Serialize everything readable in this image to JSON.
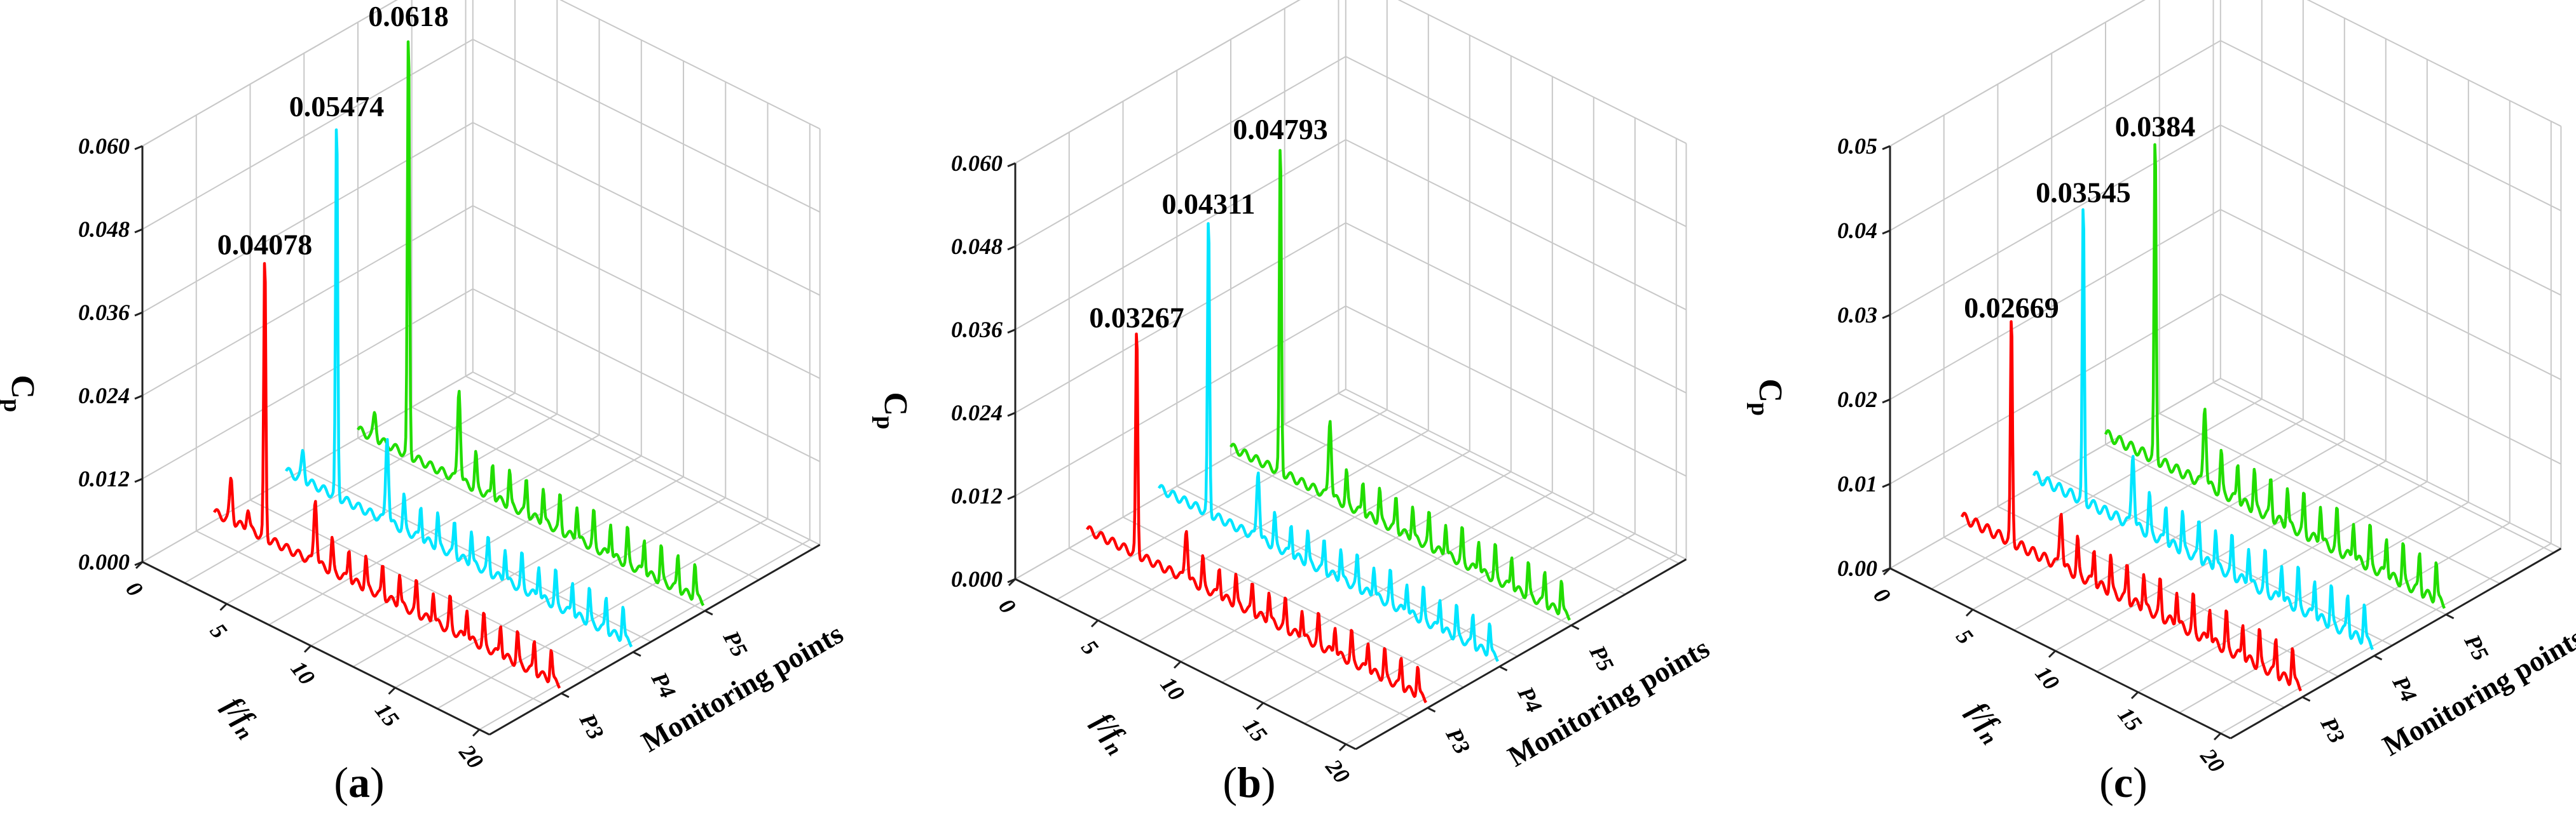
{
  "chart_data": [
    {
      "type": "line",
      "panel_label": "a",
      "zlim": [
        0,
        0.06
      ],
      "zticks": [
        "0.000",
        "0.012",
        "0.024",
        "0.036",
        "0.048",
        "0.060"
      ],
      "xticks": [
        "0",
        "5",
        "10",
        "15",
        "20"
      ],
      "xlim": [
        0,
        20
      ],
      "xlabel": "f/f",
      "xlabel_sub": "n",
      "ylabel": "Monitoring points",
      "zlabel": "C",
      "zlabel_sub": "p",
      "series": [
        {
          "name": "P3",
          "color": "#ff0000",
          "peak_freq": 3.0,
          "peak_value": 0.04078,
          "peak_label": "0.04078",
          "secondary": [
            {
              "f": 1.0,
              "v": 0.006
            },
            {
              "f": 2.0,
              "v": 0.003
            },
            {
              "f": 6.0,
              "v": 0.0095
            }
          ],
          "harmonic_amp": 0.0045
        },
        {
          "name": "P4",
          "color": "#00e5ff",
          "peak_freq": 3.0,
          "peak_value": 0.05474,
          "peak_label": "0.05474",
          "secondary": [
            {
              "f": 1.0,
              "v": 0.004
            },
            {
              "f": 6.0,
              "v": 0.0125
            }
          ],
          "harmonic_amp": 0.0048
        },
        {
          "name": "P5",
          "color": "#22dd00",
          "peak_freq": 3.0,
          "peak_value": 0.0618,
          "peak_label": "0.0618",
          "secondary": [
            {
              "f": 1.0,
              "v": 0.0035
            },
            {
              "f": 6.0,
              "v": 0.0135
            }
          ],
          "harmonic_amp": 0.005
        }
      ],
      "ytick_labels": [
        "P3",
        "P4",
        "P5"
      ]
    },
    {
      "type": "line",
      "panel_label": "b",
      "zlim": [
        0,
        0.06
      ],
      "zticks": [
        "0.000",
        "0.012",
        "0.024",
        "0.036",
        "0.048",
        "0.060"
      ],
      "xticks": [
        "0",
        "5",
        "10",
        "15",
        "20"
      ],
      "xlim": [
        0,
        20
      ],
      "xlabel": "f/f",
      "xlabel_sub": "n",
      "ylabel": "Monitoring points",
      "zlabel": "C",
      "zlabel_sub": "p",
      "series": [
        {
          "name": "P3",
          "color": "#ff0000",
          "peak_freq": 3.0,
          "peak_value": 0.03267,
          "peak_label": "0.03267",
          "secondary": [
            {
              "f": 6.0,
              "v": 0.0075
            }
          ],
          "harmonic_amp": 0.0042
        },
        {
          "name": "P4",
          "color": "#00e5ff",
          "peak_freq": 3.0,
          "peak_value": 0.04311,
          "peak_label": "0.04311",
          "secondary": [
            {
              "f": 6.0,
              "v": 0.01
            }
          ],
          "harmonic_amp": 0.0045
        },
        {
          "name": "P5",
          "color": "#22dd00",
          "peak_freq": 3.0,
          "peak_value": 0.04793,
          "peak_label": "0.04793",
          "secondary": [
            {
              "f": 6.0,
              "v": 0.0115
            }
          ],
          "harmonic_amp": 0.0047
        }
      ],
      "ytick_labels": [
        "P3",
        "P4",
        "P5"
      ]
    },
    {
      "type": "line",
      "panel_label": "c",
      "zlim": [
        0,
        0.05
      ],
      "zticks": [
        "0.00",
        "0.01",
        "0.02",
        "0.03",
        "0.04",
        "0.05"
      ],
      "xticks": [
        "0",
        "5",
        "10",
        "15",
        "20"
      ],
      "xlim": [
        0,
        20
      ],
      "xlabel": "f/f",
      "xlabel_sub": "n",
      "ylabel": "Monitoring points",
      "zlabel": "C",
      "zlabel_sub": "p",
      "series": [
        {
          "name": "P3",
          "color": "#ff0000",
          "peak_freq": 3.0,
          "peak_value": 0.02669,
          "peak_label": "0.02669",
          "secondary": [
            {
              "f": 6.0,
              "v": 0.0068
            }
          ],
          "harmonic_amp": 0.0042
        },
        {
          "name": "P4",
          "color": "#00e5ff",
          "peak_freq": 3.0,
          "peak_value": 0.03545,
          "peak_label": "0.03545",
          "secondary": [
            {
              "f": 6.0,
              "v": 0.0088
            }
          ],
          "harmonic_amp": 0.0045
        },
        {
          "name": "P5",
          "color": "#22dd00",
          "peak_freq": 3.0,
          "peak_value": 0.0384,
          "peak_label": "0.0384",
          "secondary": [
            {
              "f": 6.0,
              "v": 0.0095
            }
          ],
          "harmonic_amp": 0.0046
        }
      ],
      "ytick_labels": [
        "P3",
        "P4",
        "P5"
      ]
    }
  ]
}
